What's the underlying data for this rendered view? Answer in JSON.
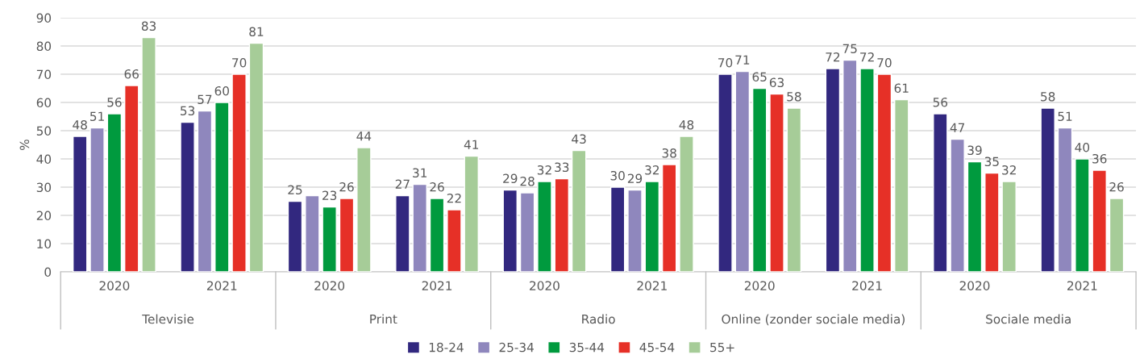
{
  "chart_data": {
    "type": "bar",
    "ylabel": "%",
    "categories": [
      "2020",
      "2021",
      "2020",
      "2021",
      "2020",
      "2021",
      "2020",
      "2021",
      "2020",
      "2021"
    ],
    "annotations": [
      "Televisie",
      "Print",
      "Radio",
      "Online (zonder sociale media)",
      "Sociale media"
    ],
    "series": [
      {
        "name": "18-24",
        "color": "#32287f",
        "values": [
          48,
          53,
          25,
          27,
          29,
          30,
          70,
          72,
          56,
          58
        ],
        "value_labels": [
          "48",
          "53",
          "25",
          "27",
          "29",
          "30",
          "70",
          "72",
          "56",
          "58"
        ]
      },
      {
        "name": "25-34",
        "color": "#8f87bd",
        "values": [
          51,
          57,
          27,
          31,
          28,
          29,
          71,
          75,
          47,
          51
        ],
        "value_labels": [
          "51",
          "57",
          null,
          "31",
          "28",
          "29",
          "71",
          "75",
          "47",
          "51"
        ]
      },
      {
        "name": "35-44",
        "color": "#009a3e",
        "values": [
          56,
          60,
          23,
          26,
          32,
          32,
          65,
          72,
          39,
          40
        ],
        "value_labels": [
          "56",
          "60",
          "23",
          "26",
          "32",
          "32",
          "65",
          "72",
          "39",
          "40"
        ]
      },
      {
        "name": "45-54",
        "color": "#e63027",
        "values": [
          66,
          70,
          26,
          22,
          33,
          38,
          63,
          70,
          35,
          36
        ],
        "value_labels": [
          "66",
          "70",
          "26",
          "22",
          "33",
          "38",
          "63",
          "70",
          "35",
          "36"
        ]
      },
      {
        "name": "55+",
        "color": "#a6cc98",
        "values": [
          83,
          81,
          44,
          41,
          43,
          48,
          58,
          61,
          32,
          26
        ],
        "value_labels": [
          "83",
          "81",
          "44",
          "41",
          "43",
          "48",
          "58",
          "61",
          "32",
          "26"
        ]
      }
    ],
    "ylim": [
      0,
      90
    ],
    "yticks": [
      0,
      10,
      20,
      30,
      40,
      50,
      60,
      70,
      80,
      90
    ],
    "grid": "y",
    "legend": "bottom"
  }
}
